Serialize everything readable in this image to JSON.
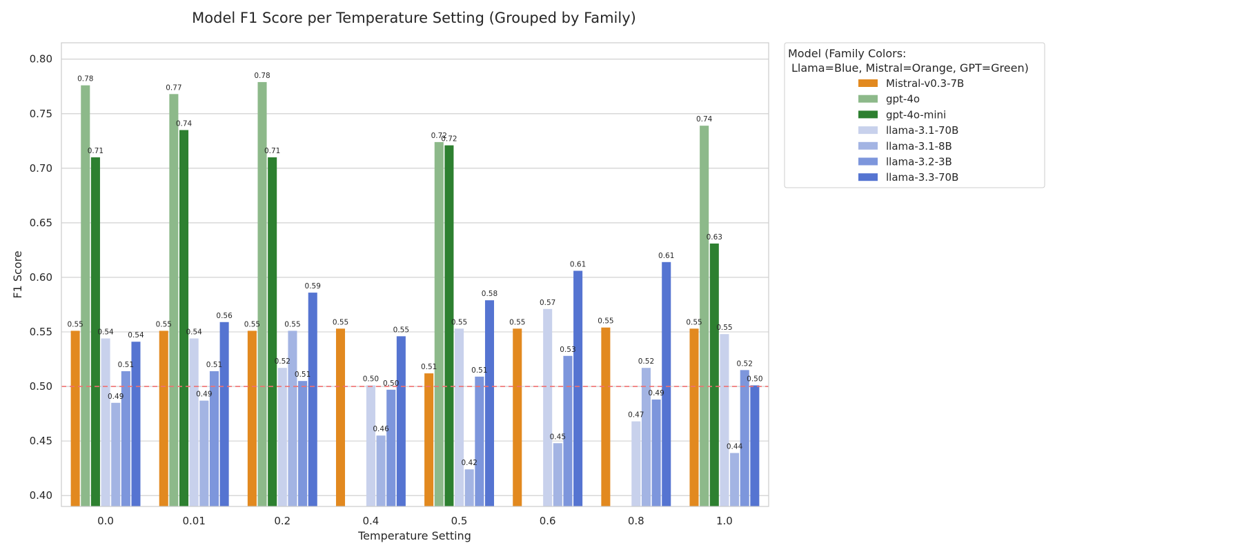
{
  "chart_data": {
    "type": "bar",
    "title": "Model F1 Score per Temperature Setting (Grouped by Family)",
    "xlabel": "Temperature Setting",
    "ylabel": "F1 Score",
    "ylim": [
      0.39,
      0.815
    ],
    "yticks": [
      "0.40",
      "0.45",
      "0.50",
      "0.55",
      "0.60",
      "0.65",
      "0.70",
      "0.75",
      "0.80"
    ],
    "grid": true,
    "reference_line": {
      "y": 0.5,
      "color": "#f07070",
      "style": "dashed"
    },
    "categories": [
      "0.0",
      "0.01",
      "0.2",
      "0.4",
      "0.5",
      "0.6",
      "0.8",
      "1.0"
    ],
    "legend": {
      "title_line1": "Model (Family Colors:",
      "title_line2": "Llama=Blue, Mistral=Orange, GPT=Green)",
      "position": "outside-right-top"
    },
    "series": [
      {
        "name": "Mistral-v0.3-7B",
        "color": "#e2891f",
        "values": [
          0.551,
          0.551,
          0.551,
          0.553,
          0.512,
          0.553,
          0.554,
          0.553
        ],
        "labels": [
          "0.55",
          "0.55",
          "0.55",
          "0.55",
          "0.51",
          "0.55",
          "0.55",
          "0.55"
        ]
      },
      {
        "name": "gpt-4o",
        "color": "#8db98a",
        "values": [
          0.776,
          0.768,
          0.779,
          null,
          0.724,
          null,
          null,
          0.739
        ],
        "labels": [
          "0.78",
          "0.77",
          "0.78",
          null,
          "0.72",
          null,
          null,
          "0.74"
        ]
      },
      {
        "name": "gpt-4o-mini",
        "color": "#2d8030",
        "values": [
          0.71,
          0.735,
          0.71,
          null,
          0.721,
          null,
          null,
          0.631
        ],
        "labels": [
          "0.71",
          "0.74",
          "0.71",
          null,
          "0.72",
          null,
          null,
          "0.63"
        ]
      },
      {
        "name": "llama-3.1-70B",
        "color": "#c8d1ec",
        "values": [
          0.544,
          0.544,
          0.517,
          0.501,
          0.553,
          0.571,
          0.468,
          0.548
        ],
        "labels": [
          "0.54",
          "0.54",
          "0.52",
          "0.50",
          "0.55",
          "0.57",
          "0.47",
          "0.55"
        ]
      },
      {
        "name": "llama-3.1-8B",
        "color": "#a3b4e3",
        "values": [
          0.485,
          0.487,
          0.551,
          0.455,
          0.424,
          0.448,
          0.517,
          0.439
        ],
        "labels": [
          "0.49",
          "0.49",
          "0.55",
          "0.46",
          "0.42",
          "0.45",
          "0.52",
          "0.44"
        ]
      },
      {
        "name": "llama-3.2-3B",
        "color": "#7d96dc",
        "values": [
          0.514,
          0.514,
          0.505,
          0.497,
          0.509,
          0.528,
          0.488,
          0.515
        ],
        "labels": [
          "0.51",
          "0.51",
          "0.51",
          "0.50",
          "0.51",
          "0.53",
          "0.49",
          "0.52"
        ]
      },
      {
        "name": "llama-3.3-70B",
        "color": "#5574d1",
        "values": [
          0.541,
          0.559,
          0.586,
          0.546,
          0.579,
          0.606,
          0.614,
          0.501
        ],
        "labels": [
          "0.54",
          "0.56",
          "0.59",
          "0.55",
          "0.58",
          "0.61",
          "0.61",
          "0.50"
        ]
      }
    ]
  }
}
